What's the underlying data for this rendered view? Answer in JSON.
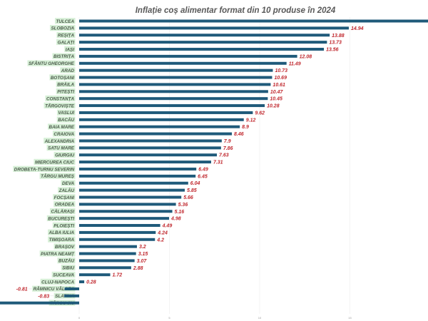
{
  "chart_data": {
    "type": "bar",
    "orientation": "horizontal",
    "title": "Inflație coș alimentar format din 10 produse în 2024",
    "xlim": [
      -4.4,
      19.5
    ],
    "x_ticks": [
      "0",
      "5",
      "10",
      "15"
    ],
    "grid": true,
    "colors": {
      "bar": "#1f5a7a",
      "value_label": "#c0272d",
      "category_highlight": "#d6efd6"
    },
    "categories": [
      "TULCEA",
      "SLOBOZIA",
      "REȘIȚA",
      "GALAȚI",
      "IAȘI",
      "BISTRIȚA",
      "SFÂNTU GHEORGHE",
      "ARAD",
      "BOTOȘANI",
      "BRĂILA",
      "PITEȘTI",
      "CONSTANȚA",
      "TÂRGOVIȘTE",
      "VASLUI",
      "BACĂU",
      "BAIA MARE",
      "CRAIOVA",
      "ALEXANDRIA",
      "SATU MARE",
      "GIURGIU",
      "MIERCUREA CIUC",
      "DROBETA-TURNU SEVERIN",
      "TÂRGU MUREȘ",
      "DEVA",
      "ZALĂU",
      "FOCȘANI",
      "ORADEA",
      "CĂLĂRAȘI",
      "BUCUREȘTI",
      "PLOIEȘTI",
      "ALBA IULIA",
      "TIMIȘOARA",
      "BRAȘOV",
      "PIATRA NEAMȚ",
      "BUZĂU",
      "SIBIU",
      "SUCEAVA",
      "CLUJ-NAPOCA",
      "RÂMNICU VÂLCEA",
      "SLATINA",
      "TÂRGU JIU"
    ],
    "values": [
      20.5,
      14.94,
      13.88,
      13.73,
      13.56,
      12.08,
      11.49,
      10.73,
      10.69,
      10.61,
      10.47,
      10.45,
      10.28,
      9.62,
      9.12,
      8.9,
      8.46,
      7.9,
      7.86,
      7.63,
      7.31,
      6.49,
      6.45,
      6.04,
      5.85,
      5.66,
      5.36,
      5.16,
      4.98,
      4.49,
      4.24,
      4.2,
      3.2,
      3.15,
      3.07,
      2.88,
      1.72,
      0.28,
      -0.81,
      -0.83,
      -5
    ],
    "value_labels": [
      null,
      "14.94",
      "13.88",
      "13.73",
      "13.56",
      "12.08",
      "11.49",
      "10.73",
      "10.69",
      "10.61",
      "10.47",
      "10.45",
      "10.28",
      "9.62",
      "9.12",
      "8.9",
      "8.46",
      "7.9",
      "7.86",
      "7.63",
      "7.31",
      "6.49",
      "6.45",
      "6.04",
      "5.85",
      "5.66",
      "5.36",
      "5.16",
      "4.98",
      "4.49",
      "4.24",
      "4.2",
      "3.2",
      "3.15",
      "3.07",
      "2.88",
      "1.72",
      "0.28",
      "-0.81",
      "-0.83",
      null
    ]
  }
}
